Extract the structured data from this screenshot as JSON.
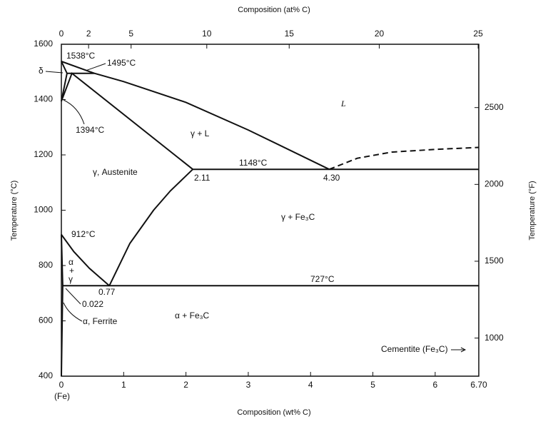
{
  "chart_data": {
    "type": "phase_diagram",
    "x_label": "Composition (wt% C)",
    "x2_label": "Composition (at% C)",
    "y_label": "Temperature (°C)",
    "y2_label": "Temperature (°F)",
    "xlim": [
      0,
      6.7
    ],
    "ylim": [
      400,
      1600
    ],
    "y2lim": [
      752,
      2912
    ],
    "xticks": [
      0,
      1,
      2,
      3,
      4,
      5,
      6,
      {
        "value": 6.7,
        "label": "6.70"
      }
    ],
    "x2ticks": [
      0,
      2,
      5,
      10,
      15,
      20,
      25
    ],
    "yticks": [
      400,
      600,
      800,
      1000,
      1200,
      1400,
      1600
    ],
    "y2ticks": [
      1000,
      1500,
      2000,
      2500
    ],
    "curves": [
      {
        "x": [
          0,
          0.53,
          1,
          2,
          3,
          4.3
        ],
        "y": [
          1538,
          1495,
          1465,
          1390,
          1290,
          1148
        ],
        "dashed": false
      },
      {
        "x": [
          4.3,
          4.75,
          5.3,
          6,
          6.7
        ],
        "y": [
          1148,
          1188,
          1210,
          1220,
          1227
        ],
        "dashed": true
      },
      {
        "x": [
          0.09,
          0.53
        ],
        "y": [
          1495,
          1495
        ],
        "dashed": false
      },
      {
        "x": [
          0,
          0.09,
          0
        ],
        "y": [
          1538,
          1495,
          1394
        ],
        "dashed": false
      },
      {
        "x": [
          0,
          0.17,
          2.11
        ],
        "y": [
          1394,
          1495,
          1148
        ],
        "dashed": false
      },
      {
        "x": [
          2.11,
          6.7
        ],
        "y": [
          1148,
          1148
        ],
        "dashed": false
      },
      {
        "x": [
          2.11,
          1.75,
          1.48,
          1.1,
          0.77
        ],
        "y": [
          1148,
          1070,
          1000,
          880,
          727
        ],
        "dashed": false
      },
      {
        "x": [
          0,
          0.2,
          0.45,
          0.77
        ],
        "y": [
          912,
          850,
          790,
          727
        ],
        "dashed": false
      },
      {
        "x": [
          0,
          0.022,
          0
        ],
        "y": [
          912,
          727,
          400
        ],
        "dashed": false
      },
      {
        "x": [
          0.022,
          6.7
        ],
        "y": [
          727,
          727
        ],
        "dashed": false
      }
    ],
    "labels": [
      "1538°C",
      "1495°C",
      "δ",
      "1394°C",
      "L",
      "γ + L",
      "1148°C",
      "γ, Austenite",
      "2.11",
      "4.30",
      "γ + Fe₃C",
      "912°C",
      "α",
      "+",
      "γ",
      "727°C",
      "0.77",
      "0.022",
      "α, Ferrite",
      "α + Fe₃C",
      "Cementite (Fe₃C)",
      "(Fe)"
    ]
  }
}
